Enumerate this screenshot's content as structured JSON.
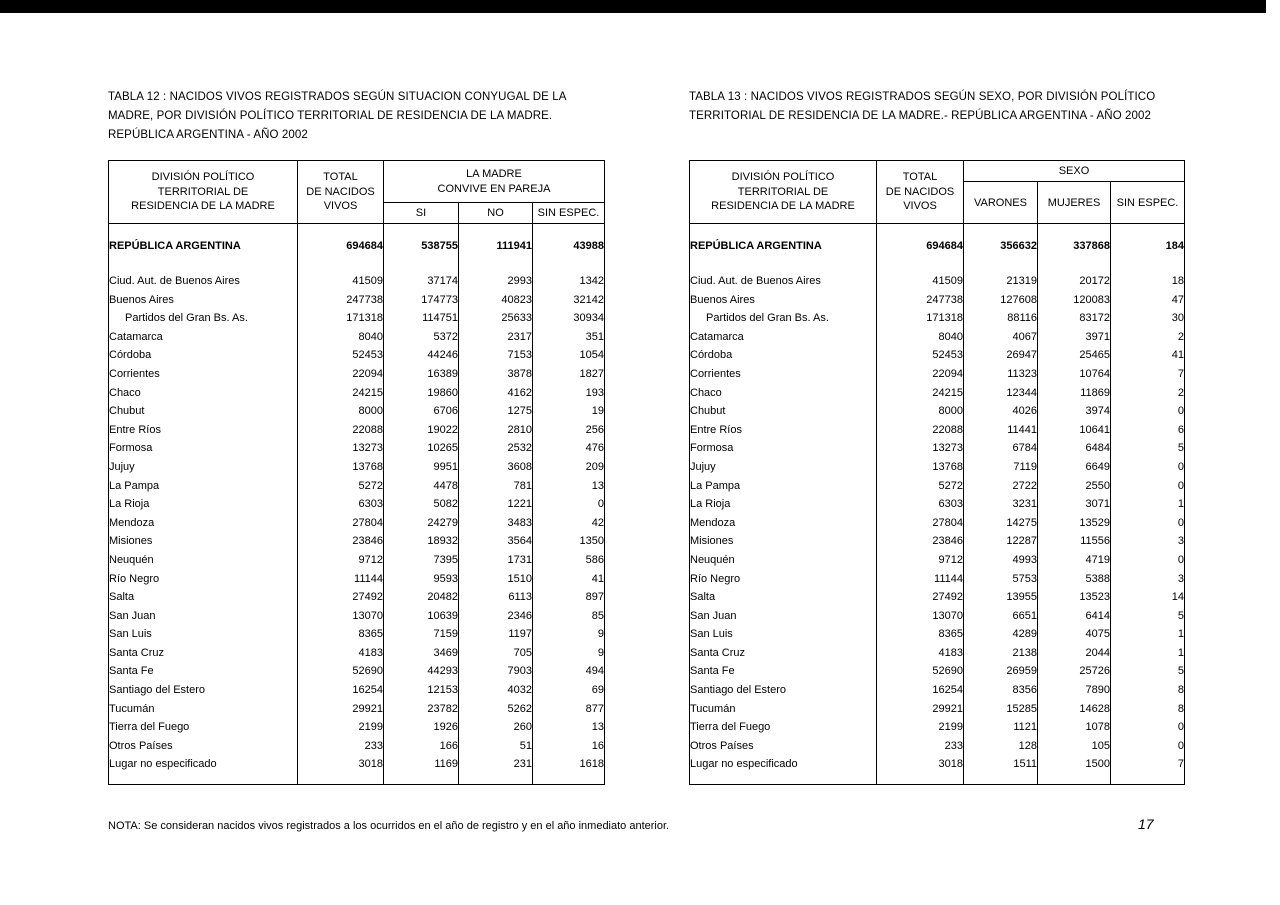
{
  "table12": {
    "title_lines": [
      "TABLA 12 : NACIDOS VIVOS REGISTRADOS SEGÚN SITUACION CONYUGAL DE LA",
      "MADRE,  POR DIVISIÓN POLÍTICO TERRITORIAL DE RESIDENCIA DE LA MADRE.",
      "REPÚBLICA ARGENTINA  -  AÑO 2002"
    ],
    "header": {
      "division": [
        "DIVISIÓN POLÍTICO",
        "TERRITORIAL  DE",
        "RESIDENCIA DE LA MADRE"
      ],
      "total": [
        "TOTAL",
        "DE NACIDOS",
        "VIVOS"
      ],
      "group": [
        "LA MADRE",
        "CONVIVE EN PAREJA"
      ],
      "sub": [
        "SI",
        "NO",
        "SIN ESPEC."
      ]
    },
    "total_row": {
      "label": "REPÚBLICA ARGENTINA",
      "values": [
        "694684",
        "538755",
        "111941",
        "43988"
      ]
    },
    "rows": [
      {
        "label": "Ciud. Aut. de  Buenos Aires",
        "indent": false,
        "values": [
          "41509",
          "37174",
          "2993",
          "1342"
        ]
      },
      {
        "label": "Buenos Aires",
        "indent": false,
        "values": [
          "247738",
          "174773",
          "40823",
          "32142"
        ]
      },
      {
        "label": "Partidos del Gran Bs. As.",
        "indent": true,
        "values": [
          "171318",
          "114751",
          "25633",
          "30934"
        ]
      },
      {
        "label": "Catamarca",
        "indent": false,
        "values": [
          "8040",
          "5372",
          "2317",
          "351"
        ]
      },
      {
        "label": "Córdoba",
        "indent": false,
        "values": [
          "52453",
          "44246",
          "7153",
          "1054"
        ]
      },
      {
        "label": "Corrientes",
        "indent": false,
        "values": [
          "22094",
          "16389",
          "3878",
          "1827"
        ]
      },
      {
        "label": "Chaco",
        "indent": false,
        "values": [
          "24215",
          "19860",
          "4162",
          "193"
        ]
      },
      {
        "label": "Chubut",
        "indent": false,
        "values": [
          "8000",
          "6706",
          "1275",
          "19"
        ]
      },
      {
        "label": "Entre Ríos",
        "indent": false,
        "values": [
          "22088",
          "19022",
          "2810",
          "256"
        ]
      },
      {
        "label": "Formosa",
        "indent": false,
        "values": [
          "13273",
          "10265",
          "2532",
          "476"
        ]
      },
      {
        "label": "Jujuy",
        "indent": false,
        "values": [
          "13768",
          "9951",
          "3608",
          "209"
        ]
      },
      {
        "label": "La Pampa",
        "indent": false,
        "values": [
          "5272",
          "4478",
          "781",
          "13"
        ]
      },
      {
        "label": "La Rioja",
        "indent": false,
        "values": [
          "6303",
          "5082",
          "1221",
          "0"
        ]
      },
      {
        "label": "Mendoza",
        "indent": false,
        "values": [
          "27804",
          "24279",
          "3483",
          "42"
        ]
      },
      {
        "label": "Misiones",
        "indent": false,
        "values": [
          "23846",
          "18932",
          "3564",
          "1350"
        ]
      },
      {
        "label": "Neuquén",
        "indent": false,
        "values": [
          "9712",
          "7395",
          "1731",
          "586"
        ]
      },
      {
        "label": "Río Negro",
        "indent": false,
        "values": [
          "11144",
          "9593",
          "1510",
          "41"
        ]
      },
      {
        "label": "Salta",
        "indent": false,
        "values": [
          "27492",
          "20482",
          "6113",
          "897"
        ]
      },
      {
        "label": "San Juan",
        "indent": false,
        "values": [
          "13070",
          "10639",
          "2346",
          "85"
        ]
      },
      {
        "label": "San Luis",
        "indent": false,
        "values": [
          "8365",
          "7159",
          "1197",
          "9"
        ]
      },
      {
        "label": "Santa Cruz",
        "indent": false,
        "values": [
          "4183",
          "3469",
          "705",
          "9"
        ]
      },
      {
        "label": "Santa Fe",
        "indent": false,
        "values": [
          "52690",
          "44293",
          "7903",
          "494"
        ]
      },
      {
        "label": "Santiago del Estero",
        "indent": false,
        "values": [
          "16254",
          "12153",
          "4032",
          "69"
        ]
      },
      {
        "label": "Tucumán",
        "indent": false,
        "values": [
          "29921",
          "23782",
          "5262",
          "877"
        ]
      },
      {
        "label": "Tierra del Fuego",
        "indent": false,
        "values": [
          "2199",
          "1926",
          "260",
          "13"
        ]
      },
      {
        "label": "Otros Países",
        "indent": false,
        "values": [
          "233",
          "166",
          "51",
          "16"
        ]
      },
      {
        "label": "Lugar no especificado",
        "indent": false,
        "values": [
          "3018",
          "1169",
          "231",
          "1618"
        ]
      }
    ]
  },
  "table13": {
    "title_lines": [
      "TABLA 13 : NACIDOS VIVOS REGISTRADOS SEGÚN SEXO, POR DIVISIÓN POLÍTICO",
      "TERRITORIAL DE RESIDENCIA DE LA MADRE.-  REPÚBLICA ARGENTINA - AÑO 2002"
    ],
    "header": {
      "division": [
        "DIVISIÓN POLÍTICO",
        "TERRITORIAL  DE",
        "RESIDENCIA DE LA MADRE"
      ],
      "total": [
        "TOTAL",
        "DE NACIDOS",
        "VIVOS"
      ],
      "group": [
        "SEXO"
      ],
      "sub": [
        "VARONES",
        "MUJERES",
        "SIN ESPEC."
      ]
    },
    "total_row": {
      "label": "REPÚBLICA ARGENTINA",
      "values": [
        "694684",
        "356632",
        "337868",
        "184"
      ]
    },
    "rows": [
      {
        "label": "Ciud. Aut. de  Buenos Aires",
        "indent": false,
        "values": [
          "41509",
          "21319",
          "20172",
          "18"
        ]
      },
      {
        "label": "Buenos Aires",
        "indent": false,
        "values": [
          "247738",
          "127608",
          "120083",
          "47"
        ]
      },
      {
        "label": "Partidos del Gran Bs. As.",
        "indent": true,
        "values": [
          "171318",
          "88116",
          "83172",
          "30"
        ]
      },
      {
        "label": "Catamarca",
        "indent": false,
        "values": [
          "8040",
          "4067",
          "3971",
          "2"
        ]
      },
      {
        "label": "Córdoba",
        "indent": false,
        "values": [
          "52453",
          "26947",
          "25465",
          "41"
        ]
      },
      {
        "label": "Corrientes",
        "indent": false,
        "values": [
          "22094",
          "11323",
          "10764",
          "7"
        ]
      },
      {
        "label": "Chaco",
        "indent": false,
        "values": [
          "24215",
          "12344",
          "11869",
          "2"
        ]
      },
      {
        "label": "Chubut",
        "indent": false,
        "values": [
          "8000",
          "4026",
          "3974",
          "0"
        ]
      },
      {
        "label": "Entre Ríos",
        "indent": false,
        "values": [
          "22088",
          "11441",
          "10641",
          "6"
        ]
      },
      {
        "label": "Formosa",
        "indent": false,
        "values": [
          "13273",
          "6784",
          "6484",
          "5"
        ]
      },
      {
        "label": "Jujuy",
        "indent": false,
        "values": [
          "13768",
          "7119",
          "6649",
          "0"
        ]
      },
      {
        "label": "La Pampa",
        "indent": false,
        "values": [
          "5272",
          "2722",
          "2550",
          "0"
        ]
      },
      {
        "label": "La Rioja",
        "indent": false,
        "values": [
          "6303",
          "3231",
          "3071",
          "1"
        ]
      },
      {
        "label": "Mendoza",
        "indent": false,
        "values": [
          "27804",
          "14275",
          "13529",
          "0"
        ]
      },
      {
        "label": "Misiones",
        "indent": false,
        "values": [
          "23846",
          "12287",
          "11556",
          "3"
        ]
      },
      {
        "label": "Neuquén",
        "indent": false,
        "values": [
          "9712",
          "4993",
          "4719",
          "0"
        ]
      },
      {
        "label": "Río Negro",
        "indent": false,
        "values": [
          "11144",
          "5753",
          "5388",
          "3"
        ]
      },
      {
        "label": "Salta",
        "indent": false,
        "values": [
          "27492",
          "13955",
          "13523",
          "14"
        ]
      },
      {
        "label": "San Juan",
        "indent": false,
        "values": [
          "13070",
          "6651",
          "6414",
          "5"
        ]
      },
      {
        "label": "San Luis",
        "indent": false,
        "values": [
          "8365",
          "4289",
          "4075",
          "1"
        ]
      },
      {
        "label": "Santa Cruz",
        "indent": false,
        "values": [
          "4183",
          "2138",
          "2044",
          "1"
        ]
      },
      {
        "label": "Santa Fe",
        "indent": false,
        "values": [
          "52690",
          "26959",
          "25726",
          "5"
        ]
      },
      {
        "label": "Santiago del Estero",
        "indent": false,
        "values": [
          "16254",
          "8356",
          "7890",
          "8"
        ]
      },
      {
        "label": "Tucumán",
        "indent": false,
        "values": [
          "29921",
          "15285",
          "14628",
          "8"
        ]
      },
      {
        "label": "Tierra del Fuego",
        "indent": false,
        "values": [
          "2199",
          "1121",
          "1078",
          "0"
        ]
      },
      {
        "label": "Otros Países",
        "indent": false,
        "values": [
          "233",
          "128",
          "105",
          "0"
        ]
      },
      {
        "label": "Lugar no especificado",
        "indent": false,
        "values": [
          "3018",
          "1511",
          "1500",
          "7"
        ]
      }
    ]
  },
  "footer": {
    "note": "NOTA:  Se consideran nacidos vivos registrados a los ocurridos en el año de registro y en el año inmediato anterior.",
    "page_number": "17"
  }
}
